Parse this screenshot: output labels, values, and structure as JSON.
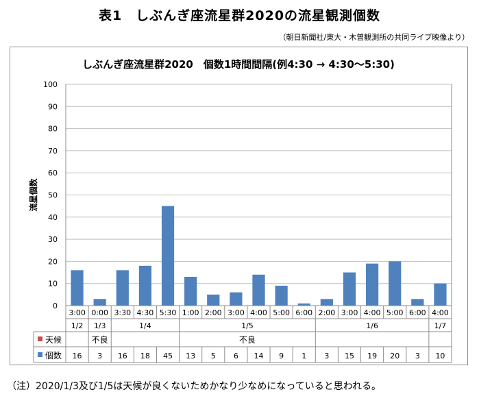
{
  "page_title": "表1　しぶんぎ座流星群2020の流星観測個数",
  "source_note": "（朝日新聞社/東大・木曽観測所の共同ライブ映像より）",
  "footnote": "（注）2020/1/3及び1/5は天候が良くないためかなり少なめになっていると思われる。",
  "colors": {
    "bar": "#4f81bd",
    "weather_legend": "#c0504d",
    "grid": "#bfbfbf",
    "axis": "#8c8c8c"
  },
  "chart_data": {
    "type": "bar",
    "title": "しぶんぎ座流星群2020　個数1時間間隔(例4:30 → 4:30〜5:30)",
    "ylabel": "流星個数",
    "ylim": [
      0,
      100
    ],
    "yticks": [
      0,
      10,
      20,
      30,
      40,
      50,
      60,
      70,
      80,
      90,
      100
    ],
    "grid": true,
    "categories": [
      "3:00",
      "0:00",
      "3:30",
      "4:30",
      "5:30",
      "1:00",
      "2:00",
      "3:00",
      "4:00",
      "5:00",
      "6:00",
      "2:00",
      "3:00",
      "4:00",
      "5:00",
      "6:00",
      "4:00"
    ],
    "date_groups": [
      {
        "label": "1/2",
        "count": 1
      },
      {
        "label": "1/3",
        "count": 1
      },
      {
        "label": "1/4",
        "count": 3
      },
      {
        "label": "1/5",
        "count": 6
      },
      {
        "label": "1/6",
        "count": 5
      },
      {
        "label": "1/7",
        "count": 1
      }
    ],
    "series": [
      {
        "name": "個数",
        "values": [
          16,
          3,
          16,
          18,
          45,
          13,
          5,
          6,
          14,
          9,
          1,
          3,
          15,
          19,
          20,
          3,
          10
        ]
      }
    ],
    "table_rows": [
      {
        "legend": "天候",
        "weather_spans": [
          {
            "text": "",
            "count": 1
          },
          {
            "text": "不良",
            "count": 1
          },
          {
            "text": "",
            "count": 3
          },
          {
            "text": "不良",
            "count": 6
          },
          {
            "text": "",
            "count": 5
          },
          {
            "text": "",
            "count": 1
          }
        ]
      },
      {
        "legend": "個数"
      }
    ]
  }
}
